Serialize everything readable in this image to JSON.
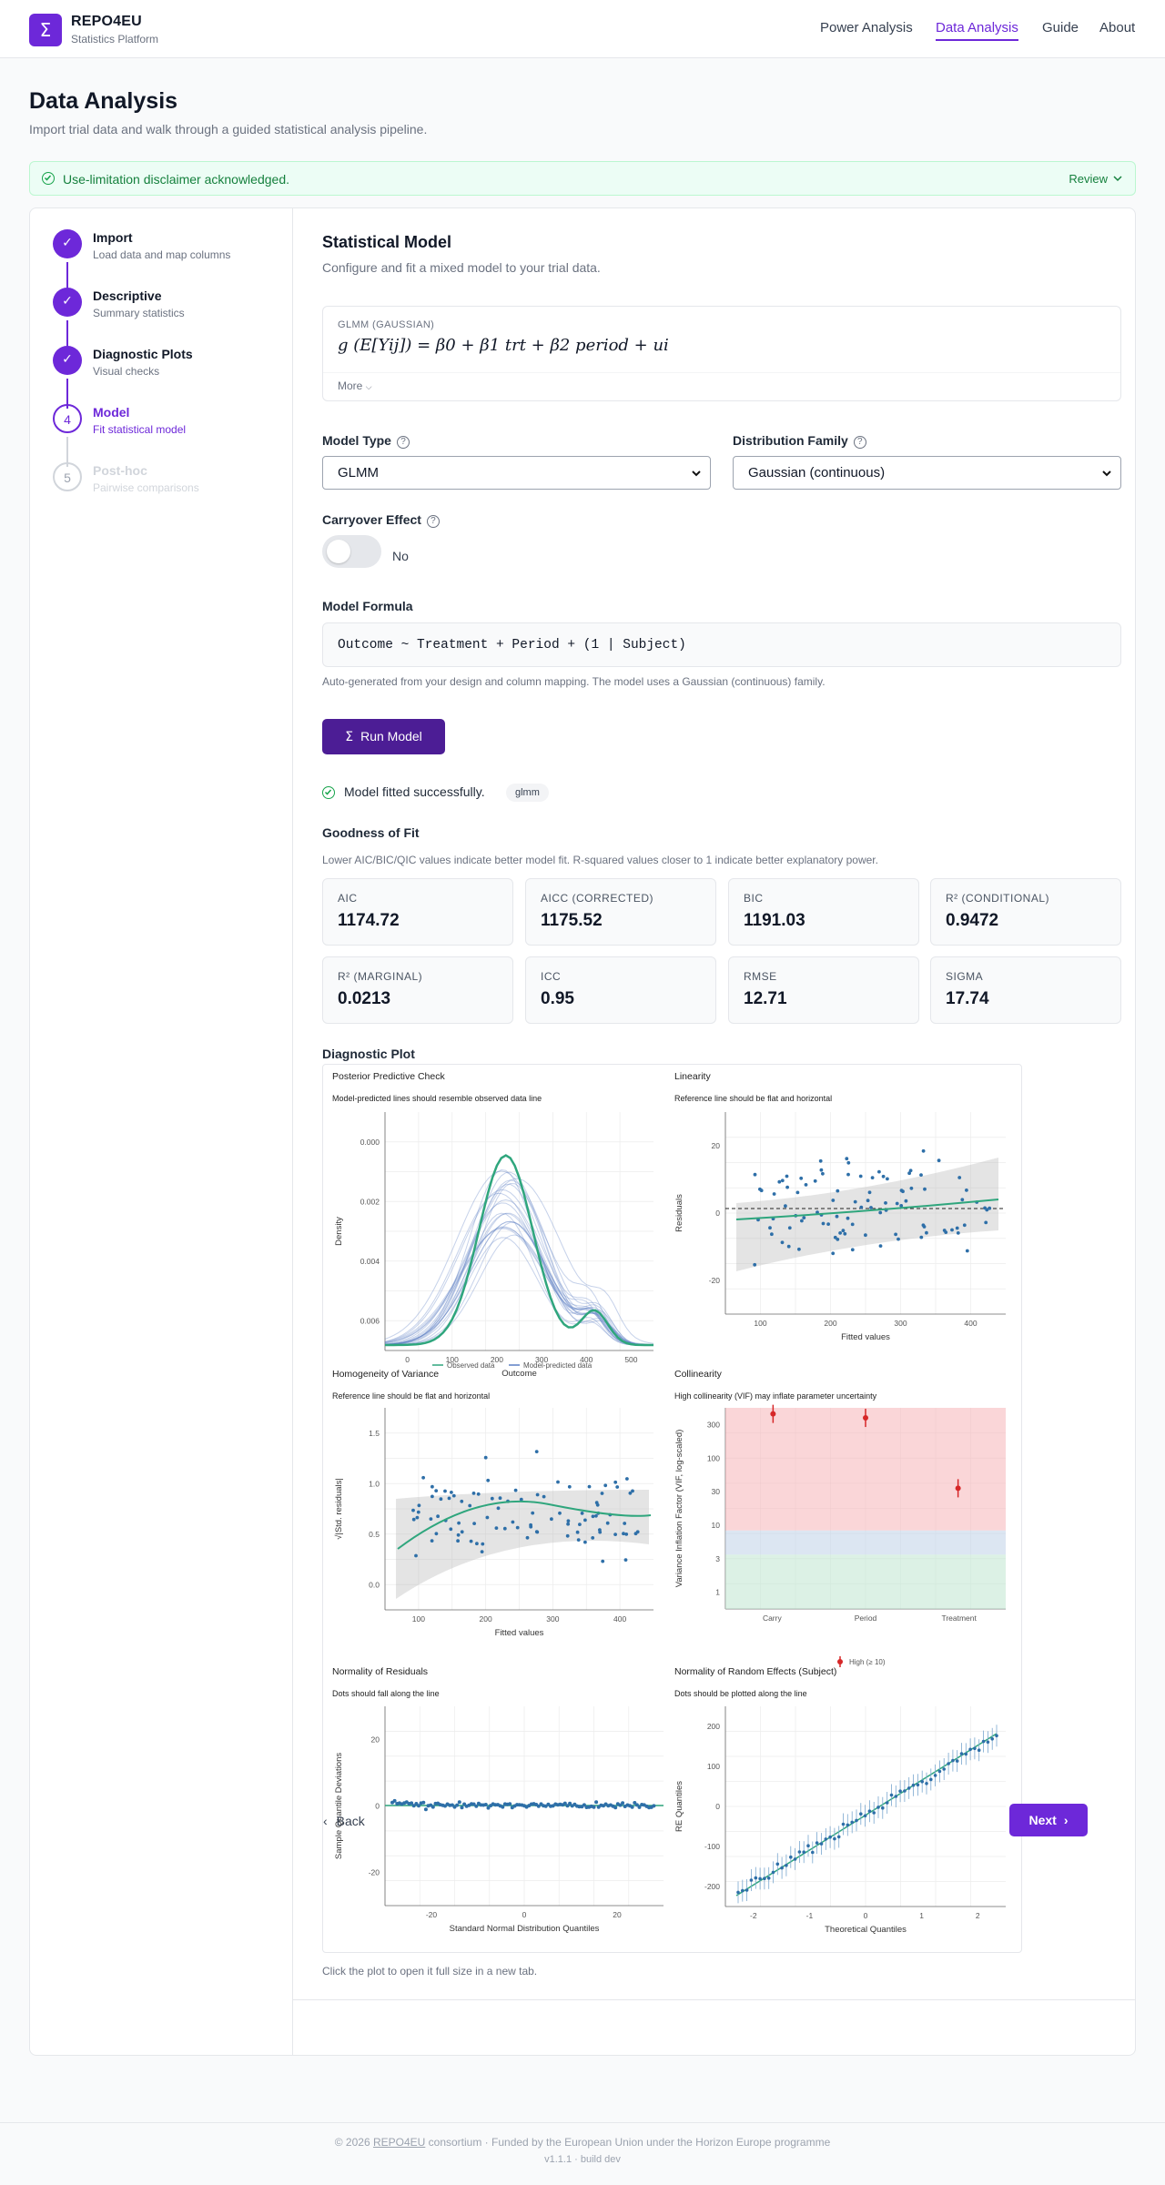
{
  "header": {
    "logo_glyph": "Σ",
    "brand": "REPO4EU",
    "brand_sub": "Statistics Platform",
    "nav": [
      "Power Analysis",
      "Data Analysis",
      "Guide",
      "About"
    ],
    "active_nav": "Data Analysis"
  },
  "page": {
    "title": "Data Analysis",
    "subtitle": "Import trial data and walk through a guided statistical analysis pipeline."
  },
  "banner": {
    "text": "Use-limitation disclaimer acknowledged.",
    "action": "Review"
  },
  "steps": [
    {
      "num": "1",
      "title": "Import",
      "desc": "Load data and map columns",
      "state": "done"
    },
    {
      "num": "2",
      "title": "Descriptive",
      "desc": "Summary statistics",
      "state": "done"
    },
    {
      "num": "3",
      "title": "Diagnostic Plots",
      "desc": "Visual checks",
      "state": "done"
    },
    {
      "num": "4",
      "title": "Model",
      "desc": "Fit statistical model",
      "state": "current"
    },
    {
      "num": "5",
      "title": "Post-hoc",
      "desc": "Pairwise comparisons",
      "state": "future"
    }
  ],
  "model": {
    "title": "Statistical Model",
    "subtitle": "Configure and fit a mixed model to your trial data.",
    "formula_label": "GLMM (GAUSSIAN)",
    "formula_math": "g (E[Yij]) = β0 + β1 trt + β2 period + ui",
    "more": "More",
    "model_type_label": "Model Type",
    "model_type_value": "GLMM",
    "family_label": "Distribution Family",
    "family_value": "Gaussian (continuous)",
    "carryover_label": "Carryover Effect",
    "carryover_value": "No",
    "formula_heading": "Model Formula",
    "formula_code": "Outcome ~ Treatment + Period + (1 | Subject)",
    "formula_hint": "Auto-generated from your design and column mapping. The model uses a Gaussian (continuous) family.",
    "run_label": "Run Model",
    "status": "Model fitted successfully.",
    "status_tag": "glmm"
  },
  "goodness": {
    "title": "Goodness of Fit",
    "desc": "Lower AIC/BIC/QIC values indicate better model fit. R-squared values closer to 1 indicate better explanatory power.",
    "metrics": [
      {
        "label": "AIC",
        "value": "1174.72"
      },
      {
        "label": "AICC (CORRECTED)",
        "value": "1175.52"
      },
      {
        "label": "BIC",
        "value": "1191.03"
      },
      {
        "label": "R² (CONDITIONAL)",
        "value": "0.9472"
      },
      {
        "label": "R² (MARGINAL)",
        "value": "0.0213"
      },
      {
        "label": "ICC",
        "value": "0.95"
      },
      {
        "label": "RMSE",
        "value": "12.71"
      },
      {
        "label": "SIGMA",
        "value": "17.74"
      }
    ]
  },
  "diagnostic": {
    "title": "Diagnostic Plot",
    "caption": "Click the plot to open it full size in a new tab.",
    "panels": [
      {
        "title": "Posterior Predictive Check",
        "subtitle": "Model-predicted lines should resemble observed data line",
        "xlabel": "Outcome",
        "ylabel": "Density",
        "xticks": [
          "0",
          "100",
          "200",
          "300",
          "400",
          "500"
        ],
        "yticks": [
          "0.000",
          "0.002",
          "0.004",
          "0.006"
        ],
        "legend": [
          "Observed data",
          "Model-predicted data"
        ]
      },
      {
        "title": "Linearity",
        "subtitle": "Reference line should be flat and horizontal",
        "xlabel": "Fitted values",
        "ylabel": "Residuals",
        "xticks": [
          "100",
          "200",
          "300",
          "400"
        ],
        "yticks": [
          "20",
          "0",
          "-20"
        ]
      },
      {
        "title": "Homogeneity of Variance",
        "subtitle": "Reference line should be flat and horizontal",
        "xlabel": "Fitted values",
        "ylabel": "√|Std. residuals|",
        "xticks": [
          "100",
          "200",
          "300",
          "400"
        ],
        "yticks": [
          "1.5",
          "1.0",
          "0.5",
          "0.0"
        ]
      },
      {
        "title": "Collinearity",
        "subtitle": "High collinearity (VIF) may inflate parameter uncertainty",
        "xlabel": "",
        "ylabel": "Variance Inflation Factor (VIF, log-scaled)",
        "xticks": [
          "Carry",
          "Period",
          "Treatment"
        ],
        "yticks": [
          "300",
          "100",
          "30",
          "10",
          "3",
          "1"
        ],
        "legend": [
          "High (≥ 10)"
        ]
      },
      {
        "title": "Normality of Residuals",
        "subtitle": "Dots should fall along the line",
        "xlabel": "Standard Normal Distribution Quantiles",
        "ylabel": "Sample Quantile Deviations",
        "xticks": [
          "-20",
          "0",
          "20"
        ],
        "yticks": [
          "20",
          "0",
          "-20"
        ]
      },
      {
        "title": "Normality of Random Effects (Subject)",
        "subtitle": "Dots should be plotted along the line",
        "xlabel": "Theoretical Quantiles",
        "ylabel": "RE Quantiles",
        "xticks": [
          "-2",
          "-1",
          "0",
          "1",
          "2"
        ],
        "yticks": [
          "200",
          "100",
          "0",
          "-100",
          "-200"
        ]
      }
    ]
  },
  "footer_nav": {
    "back": "Back",
    "next": "Next"
  },
  "footer": {
    "line1_prefix": "© 2026 ",
    "line1_link": "REPO4EU",
    "line1_suffix": " consortium · Funded by the European Union under the Horizon Europe programme",
    "line2": "v1.1.1 · build dev"
  },
  "colors": {
    "accent": "#6d28d9",
    "run_button": "#4c1d95",
    "success": "#16a34a",
    "plot_teal": "#2fa67d",
    "plot_blue": "#2e6fa8",
    "vif_high": "#d62728"
  }
}
